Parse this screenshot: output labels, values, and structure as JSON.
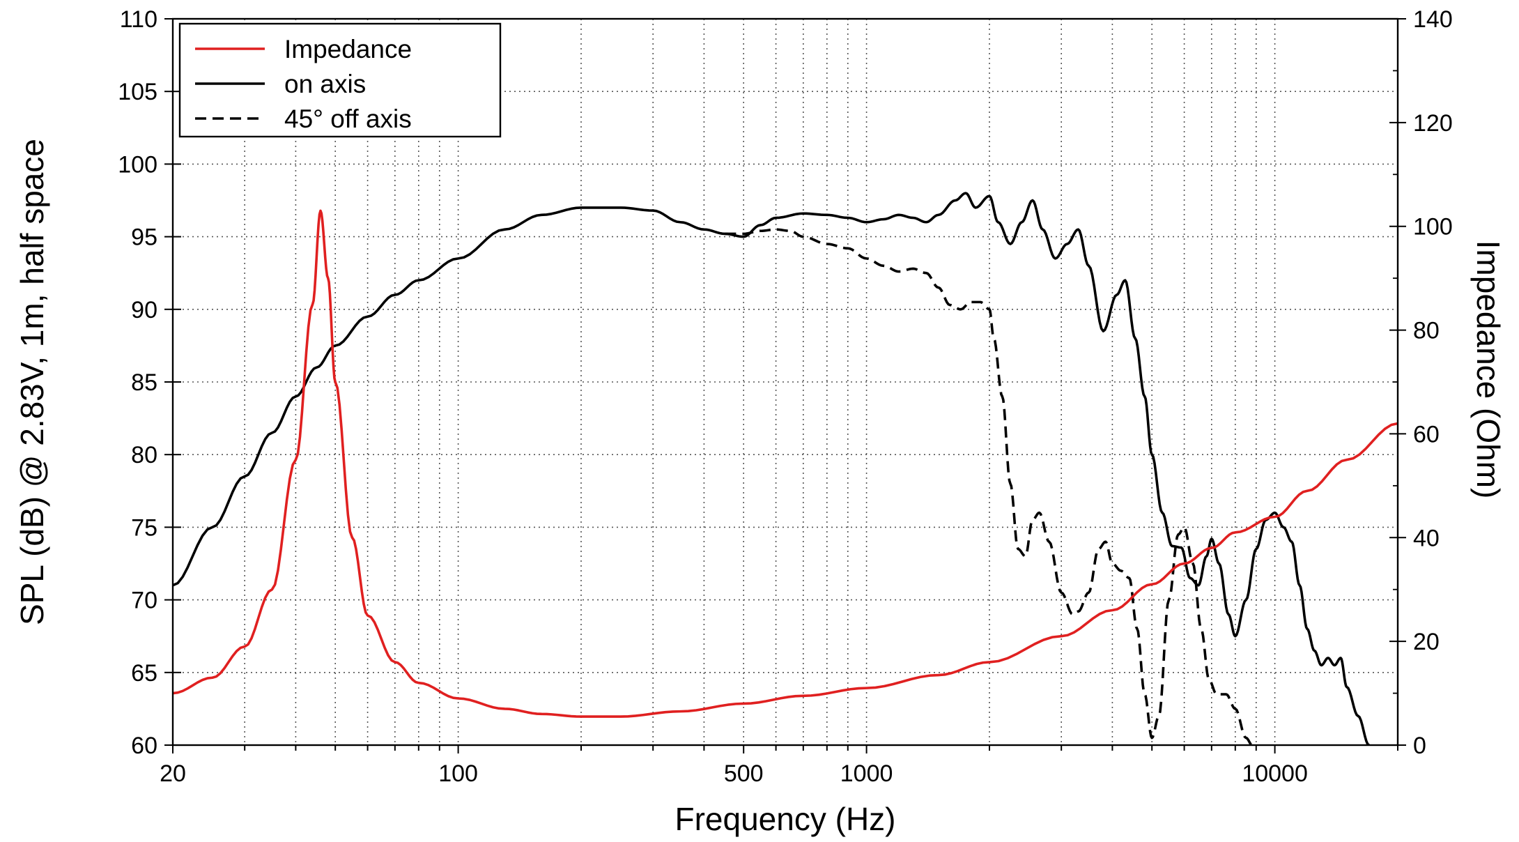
{
  "chart_data": {
    "type": "line",
    "x_scale": "log",
    "xlim": [
      20,
      20000
    ],
    "ylim_left": [
      60,
      110
    ],
    "ylim_right": [
      0,
      140
    ],
    "grid": true,
    "xlabel": "Frequency (Hz)",
    "ylabel_left": "SPL (dB) @ 2.83V, 1m, half space",
    "ylabel_right": "Impedance (Ohm)",
    "legend_position": "top-left",
    "x_tick_labels": [
      {
        "value": 20,
        "label": "20"
      },
      {
        "value": 100,
        "label": "100"
      },
      {
        "value": 500,
        "label": "500"
      },
      {
        "value": 1000,
        "label": "1000"
      },
      {
        "value": 10000,
        "label": "10000"
      }
    ],
    "y_left_ticks": [
      60,
      65,
      70,
      75,
      80,
      85,
      90,
      95,
      100,
      105,
      110
    ],
    "y_right_ticks": [
      0,
      20,
      40,
      60,
      80,
      100,
      120,
      140
    ],
    "series": [
      {
        "name": "Impedance",
        "axis": "right",
        "color": "#e02020",
        "style": "solid",
        "points": [
          [
            20,
            10
          ],
          [
            25,
            13
          ],
          [
            30,
            19
          ],
          [
            35,
            30
          ],
          [
            40,
            55
          ],
          [
            44,
            85
          ],
          [
            46,
            103
          ],
          [
            48,
            90
          ],
          [
            50,
            70
          ],
          [
            55,
            40
          ],
          [
            60,
            25
          ],
          [
            70,
            16
          ],
          [
            80,
            12
          ],
          [
            100,
            9
          ],
          [
            130,
            7
          ],
          [
            160,
            6
          ],
          [
            200,
            5.5
          ],
          [
            250,
            5.5
          ],
          [
            350,
            6.5
          ],
          [
            500,
            8
          ],
          [
            700,
            9.5
          ],
          [
            1000,
            11
          ],
          [
            1500,
            13.5
          ],
          [
            2000,
            16
          ],
          [
            3000,
            21
          ],
          [
            4000,
            26
          ],
          [
            5000,
            31
          ],
          [
            6000,
            35
          ],
          [
            7000,
            38
          ],
          [
            8000,
            41
          ],
          [
            10000,
            44
          ],
          [
            12000,
            49
          ],
          [
            15000,
            55
          ],
          [
            20000,
            62
          ]
        ]
      },
      {
        "name": "on axis",
        "axis": "left",
        "color": "#000000",
        "style": "solid",
        "points": [
          [
            20,
            71
          ],
          [
            25,
            75
          ],
          [
            30,
            78.5
          ],
          [
            35,
            81.5
          ],
          [
            40,
            84
          ],
          [
            45,
            86
          ],
          [
            50,
            87.5
          ],
          [
            60,
            89.5
          ],
          [
            70,
            91
          ],
          [
            80,
            92
          ],
          [
            100,
            93.5
          ],
          [
            130,
            95.5
          ],
          [
            160,
            96.5
          ],
          [
            200,
            97
          ],
          [
            250,
            97
          ],
          [
            300,
            96.8
          ],
          [
            350,
            96
          ],
          [
            400,
            95.5
          ],
          [
            450,
            95.2
          ],
          [
            500,
            95
          ],
          [
            550,
            95.8
          ],
          [
            600,
            96.3
          ],
          [
            700,
            96.6
          ],
          [
            800,
            96.5
          ],
          [
            900,
            96.3
          ],
          [
            1000,
            96
          ],
          [
            1100,
            96.2
          ],
          [
            1200,
            96.5
          ],
          [
            1300,
            96.3
          ],
          [
            1400,
            96
          ],
          [
            1500,
            96.5
          ],
          [
            1650,
            97.5
          ],
          [
            1750,
            98
          ],
          [
            1850,
            97
          ],
          [
            2000,
            97.8
          ],
          [
            2100,
            96
          ],
          [
            2250,
            94.5
          ],
          [
            2400,
            96
          ],
          [
            2550,
            97.5
          ],
          [
            2700,
            95.5
          ],
          [
            2900,
            93.5
          ],
          [
            3100,
            94.5
          ],
          [
            3300,
            95.5
          ],
          [
            3500,
            93
          ],
          [
            3800,
            88.5
          ],
          [
            4100,
            91
          ],
          [
            4300,
            92
          ],
          [
            4550,
            88
          ],
          [
            4800,
            84
          ],
          [
            5000,
            80
          ],
          [
            5300,
            76
          ],
          [
            5600,
            73.7
          ],
          [
            5900,
            73.6
          ],
          [
            6200,
            71.5
          ],
          [
            6500,
            71
          ],
          [
            6800,
            73
          ],
          [
            7000,
            74.2
          ],
          [
            7300,
            72.5
          ],
          [
            7700,
            69
          ],
          [
            8000,
            67.5
          ],
          [
            8500,
            70
          ],
          [
            9000,
            73.5
          ],
          [
            9500,
            75.5
          ],
          [
            10000,
            76
          ],
          [
            10500,
            75
          ],
          [
            11000,
            74
          ],
          [
            11500,
            71
          ],
          [
            12000,
            68
          ],
          [
            12500,
            66.5
          ],
          [
            13000,
            65.5
          ],
          [
            13500,
            66
          ],
          [
            14000,
            65.5
          ],
          [
            14500,
            66
          ],
          [
            15000,
            64
          ],
          [
            16000,
            62
          ],
          [
            17000,
            60
          ]
        ]
      },
      {
        "name": "45° off axis",
        "axis": "left",
        "color": "#000000",
        "style": "dashed",
        "points": [
          [
            450,
            95.2
          ],
          [
            500,
            95.2
          ],
          [
            550,
            95.4
          ],
          [
            600,
            95.5
          ],
          [
            650,
            95.4
          ],
          [
            700,
            95
          ],
          [
            800,
            94.5
          ],
          [
            900,
            94.2
          ],
          [
            1000,
            93.5
          ],
          [
            1100,
            93
          ],
          [
            1200,
            92.6
          ],
          [
            1300,
            92.8
          ],
          [
            1400,
            92.5
          ],
          [
            1500,
            91.5
          ],
          [
            1600,
            90.3
          ],
          [
            1700,
            90
          ],
          [
            1800,
            90.5
          ],
          [
            1900,
            90.5
          ],
          [
            2000,
            90
          ],
          [
            2050,
            88
          ],
          [
            2150,
            84
          ],
          [
            2250,
            78
          ],
          [
            2350,
            73.5
          ],
          [
            2450,
            73
          ],
          [
            2550,
            75.5
          ],
          [
            2650,
            76
          ],
          [
            2800,
            74
          ],
          [
            3000,
            70.5
          ],
          [
            3200,
            69
          ],
          [
            3300,
            69.2
          ],
          [
            3500,
            70.5
          ],
          [
            3700,
            73.5
          ],
          [
            3850,
            74
          ],
          [
            4000,
            72.5
          ],
          [
            4200,
            72
          ],
          [
            4400,
            71.5
          ],
          [
            4600,
            68
          ],
          [
            4800,
            63.5
          ],
          [
            5000,
            60.5
          ],
          [
            5200,
            62
          ],
          [
            5500,
            70
          ],
          [
            5800,
            74.5
          ],
          [
            6000,
            75
          ],
          [
            6300,
            72.5
          ],
          [
            6600,
            68
          ],
          [
            6900,
            64.5
          ],
          [
            7200,
            63.5
          ],
          [
            7600,
            63.5
          ],
          [
            8000,
            62.5
          ],
          [
            8500,
            60.5
          ],
          [
            8800,
            60
          ]
        ]
      }
    ]
  }
}
